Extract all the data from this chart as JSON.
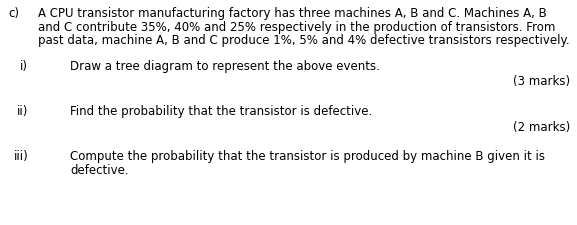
{
  "bg_color": "#ffffff",
  "text_color": "#000000",
  "label_c": "c)",
  "para1": "A CPU transistor manufacturing factory has three machines A, B and C. Machines A, B",
  "para2": "and C contribute 35%, 40% and 25% respectively in the production of transistors. From",
  "para3": "past data, machine A, B and C produce 1%, 5% and 4% defective transistors respectively.",
  "i_label": "i)",
  "i_text": "Draw a tree diagram to represent the above events.",
  "i_marks": "(3 marks)",
  "ii_label": "ii)",
  "ii_text": "Find the probability that the transistor is defective.",
  "ii_marks": "(2 marks)",
  "iii_label": "iii)",
  "iii_text1": "Compute the probability that the transistor is produced by machine B given it is",
  "iii_text2": "defective.",
  "font_size": 8.5,
  "font_family": "DejaVu Sans"
}
